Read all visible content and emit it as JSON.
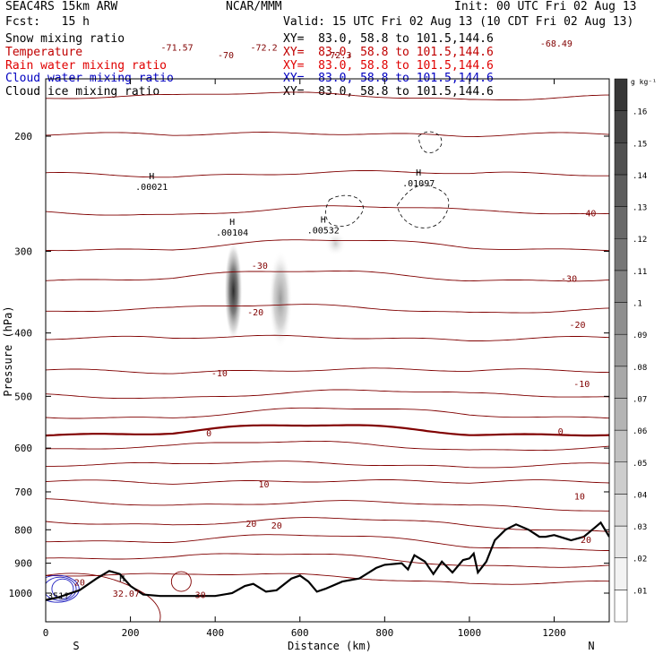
{
  "header": {
    "model": "SEAC4RS 15km ARW",
    "org": "NCAR/MMM",
    "init": "Init: 00 UTC Fri 02 Aug 13",
    "fcst": "Fcst:   15 h",
    "valid": "Valid: 15 UTC Fri 02 Aug 13 (10 CDT Fri 02 Aug 13)"
  },
  "fields": [
    {
      "name": "Snow mixing ratio",
      "xy": "XY=  83.0, 58.8 to 101.5,144.6",
      "color": "#000000"
    },
    {
      "name": "Temperature",
      "xy": "XY=  83.0, 58.8 to 101.5,144.6",
      "color": "#c00000"
    },
    {
      "name": "Rain water mixing ratio",
      "xy": "XY=  83.0, 58.8 to 101.5,144.6",
      "color": "#e00000"
    },
    {
      "name": "Cloud water mixing ratio",
      "xy": "XY=  83.0, 58.8 to 101.5,144.6",
      "color": "#0000c0"
    },
    {
      "name": "Cloud ice mixing ratio",
      "xy": "XY=  83.0, 58.8 to 101.5,144.6",
      "color": "#000000"
    }
  ],
  "colors": {
    "temperature": "#800000",
    "zero_isotherm": "#800000",
    "terrain": "#000000",
    "cloud_water": "#2020c0",
    "snow_fill": "#404040"
  },
  "chart_data": {
    "type": "cross-section",
    "xlabel": "Distance (km)",
    "ylabel": "Pressure (hPa)",
    "xlim": [
      0,
      1330
    ],
    "ylim_pressure": [
      1050,
      150
    ],
    "y_log_scale": true,
    "x_ticks": [
      "0",
      "200",
      "400",
      "600",
      "800",
      "1000",
      "1200"
    ],
    "x_tick_values": [
      0,
      200,
      400,
      600,
      800,
      1000,
      1200
    ],
    "y_ticks": [
      "200",
      "300",
      "400",
      "500",
      "600",
      "700",
      "800",
      "900",
      "1000"
    ],
    "y_tick_values": [
      200,
      300,
      400,
      500,
      600,
      700,
      800,
      900,
      1000
    ],
    "x_endpoints": [
      "S",
      "N"
    ],
    "colorbar": {
      "unit": "g kg⁻¹",
      "labels": [
        ".01",
        ".02",
        ".03",
        ".04",
        ".05",
        ".06",
        ".07",
        ".08",
        ".09",
        ".1",
        ".11",
        ".12",
        ".13",
        ".14",
        ".15",
        ".16"
      ]
    },
    "temperature_labels": [
      {
        "text": "-71.57",
        "x": 310,
        "p": 146
      },
      {
        "text": "-70",
        "x": 425,
        "p": 150
      },
      {
        "text": "-72.2",
        "x": 515,
        "p": 146
      },
      {
        "text": "-72.3",
        "x": 690,
        "p": 150
      },
      {
        "text": "-68.49",
        "x": 1205,
        "p": 144
      },
      {
        "text": "-40",
        "x": 1280,
        "p": 262
      },
      {
        "text": "-30",
        "x": 505,
        "p": 315
      },
      {
        "text": "-30",
        "x": 1235,
        "p": 330
      },
      {
        "text": "-20",
        "x": 495,
        "p": 371
      },
      {
        "text": "-20",
        "x": 1255,
        "p": 388
      },
      {
        "text": "-10",
        "x": 410,
        "p": 460
      },
      {
        "text": "-10",
        "x": 1265,
        "p": 478
      },
      {
        "text": "0",
        "x": 385,
        "p": 568
      },
      {
        "text": "0",
        "x": 1215,
        "p": 565
      },
      {
        "text": "10",
        "x": 515,
        "p": 680
      },
      {
        "text": "10",
        "x": 1260,
        "p": 710
      },
      {
        "text": "20",
        "x": 485,
        "p": 782
      },
      {
        "text": "20",
        "x": 545,
        "p": 787
      },
      {
        "text": "20",
        "x": 1275,
        "p": 828
      },
      {
        "text": "20",
        "x": 80,
        "p": 962
      },
      {
        "text": "30",
        "x": 365,
        "p": 1005
      },
      {
        "text": "32.07",
        "x": 190,
        "p": 1000
      }
    ],
    "maxima": [
      {
        "label": "H",
        "value": ".00021",
        "x": 250,
        "p": 240
      },
      {
        "label": "H",
        "value": ".00104",
        "x": 440,
        "p": 282
      },
      {
        "label": "H",
        "value": ".00532",
        "x": 655,
        "p": 280
      },
      {
        "label": "H",
        "value": ".01097",
        "x": 880,
        "p": 237
      },
      {
        "label": "H",
        "value": "",
        "x": 180,
        "p": 990
      },
      {
        "label": "",
        "value": "351?",
        "x": 30,
        "p": 1015
      }
    ],
    "temperature_contours_C": [
      -70,
      -60,
      -50,
      -40,
      -30,
      -20,
      -10,
      0,
      10,
      20,
      30
    ],
    "snow_maxima_gkg": [
      0.16,
      0.08
    ],
    "terrain": [
      [
        0,
        1025
      ],
      [
        30,
        1015
      ],
      [
        80,
        990
      ],
      [
        120,
        950
      ],
      [
        150,
        925
      ],
      [
        175,
        935
      ],
      [
        200,
        975
      ],
      [
        230,
        1005
      ],
      [
        270,
        1010
      ],
      [
        400,
        1010
      ],
      [
        440,
        1000
      ],
      [
        470,
        975
      ],
      [
        490,
        968
      ],
      [
        520,
        995
      ],
      [
        545,
        990
      ],
      [
        580,
        950
      ],
      [
        600,
        940
      ],
      [
        620,
        960
      ],
      [
        640,
        995
      ],
      [
        660,
        985
      ],
      [
        700,
        960
      ],
      [
        740,
        950
      ],
      [
        780,
        915
      ],
      [
        800,
        905
      ],
      [
        840,
        900
      ],
      [
        855,
        920
      ],
      [
        870,
        875
      ],
      [
        895,
        895
      ],
      [
        915,
        935
      ],
      [
        935,
        895
      ],
      [
        960,
        930
      ],
      [
        985,
        890
      ],
      [
        1000,
        885
      ],
      [
        1010,
        870
      ],
      [
        1020,
        930
      ],
      [
        1040,
        895
      ],
      [
        1060,
        830
      ],
      [
        1085,
        800
      ],
      [
        1110,
        785
      ],
      [
        1140,
        800
      ],
      [
        1165,
        820
      ],
      [
        1180,
        820
      ],
      [
        1200,
        815
      ],
      [
        1240,
        830
      ],
      [
        1270,
        820
      ],
      [
        1300,
        790
      ],
      [
        1310,
        780
      ],
      [
        1330,
        820
      ]
    ]
  }
}
